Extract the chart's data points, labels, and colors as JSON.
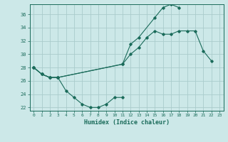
{
  "xlabel": "Humidex (Indice chaleur)",
  "bg_color": "#cce8e8",
  "grid_color": "#aacccc",
  "line_color": "#1a6b5a",
  "xlim": [
    -0.5,
    23.5
  ],
  "ylim": [
    21.5,
    37.5
  ],
  "yticks": [
    22,
    24,
    26,
    28,
    30,
    32,
    34,
    36
  ],
  "xticks": [
    0,
    1,
    2,
    3,
    4,
    5,
    6,
    7,
    8,
    9,
    10,
    11,
    12,
    13,
    14,
    15,
    16,
    17,
    18,
    19,
    20,
    21,
    22,
    23
  ],
  "series": [
    {
      "x": [
        0,
        1,
        2,
        3,
        4,
        5,
        6,
        7,
        8,
        9,
        10,
        11
      ],
      "y": [
        28.0,
        27.0,
        26.5,
        26.5,
        24.5,
        23.5,
        22.5,
        22.0,
        22.0,
        22.5,
        23.5,
        23.5
      ]
    },
    {
      "x": [
        0,
        1,
        2,
        3,
        11,
        12,
        13,
        15,
        16,
        17,
        18
      ],
      "y": [
        28.0,
        27.0,
        26.5,
        26.5,
        28.5,
        31.5,
        32.5,
        35.5,
        37.0,
        37.5,
        37.0
      ]
    },
    {
      "x": [
        0,
        1,
        2,
        3,
        11,
        12,
        13,
        14,
        15,
        16,
        17,
        18,
        19,
        20,
        21,
        22
      ],
      "y": [
        28.0,
        27.0,
        26.5,
        26.5,
        28.5,
        30.0,
        31.0,
        32.5,
        33.5,
        33.0,
        33.0,
        33.5,
        33.5,
        33.5,
        30.5,
        29.0
      ]
    }
  ]
}
